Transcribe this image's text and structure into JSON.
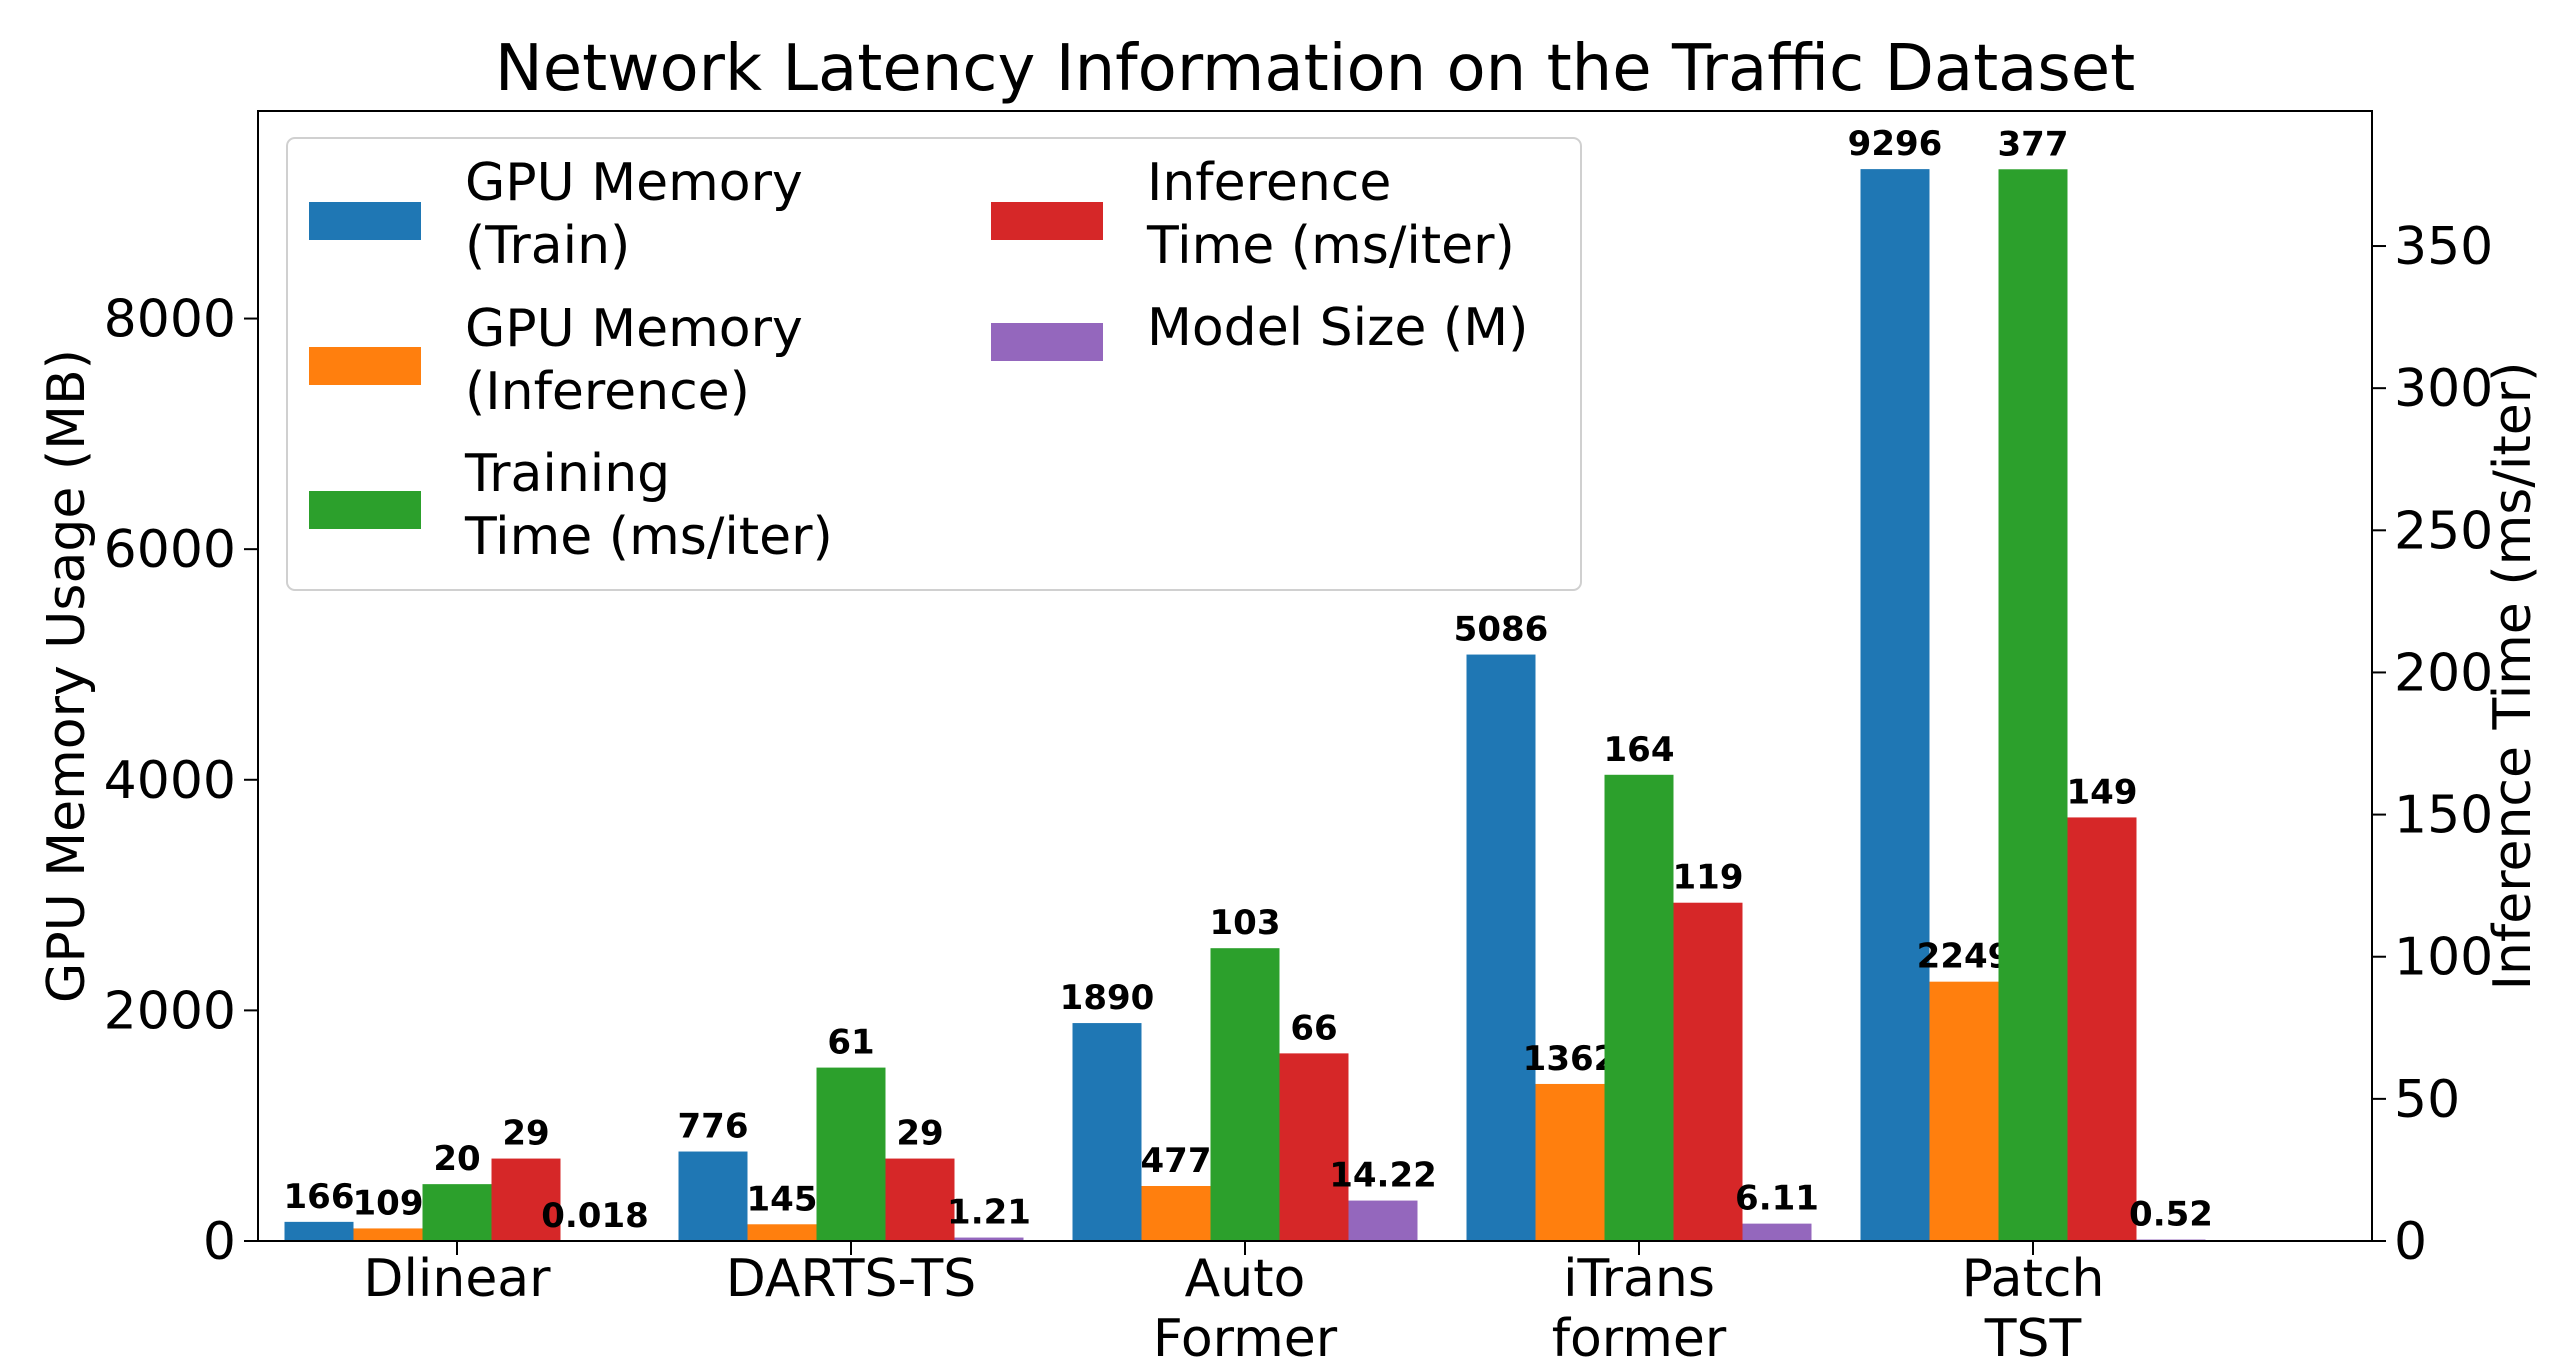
{
  "chart_data": {
    "type": "bar",
    "title": "Network Latency Information on the Traffic Dataset",
    "ylabel": "GPU Memory Usage (MB)",
    "y2label": "Inference Time (ms/iter)",
    "categories": [
      [
        "Dlinear"
      ],
      [
        "DARTS-TS"
      ],
      [
        "Auto",
        "Former"
      ],
      [
        "iTrans",
        "former"
      ],
      [
        "Patch",
        "TST"
      ]
    ],
    "ylim": [
      0,
      9800
    ],
    "y2lim": [
      0,
      397.5
    ],
    "yticks": [
      0,
      2000,
      4000,
      6000,
      8000
    ],
    "y2ticks": [
      0,
      50,
      100,
      150,
      200,
      250,
      300,
      350
    ],
    "legend_position": "upper-left",
    "legend_columns": 2,
    "series": [
      {
        "name": [
          "GPU Memory",
          " (Train)"
        ],
        "color": "#1f77b4",
        "axis": "left",
        "values": [
          166,
          776,
          1890,
          5086,
          9296
        ],
        "labels": [
          "166",
          "776",
          "1890",
          "5086",
          "9296"
        ]
      },
      {
        "name": [
          "GPU Memory",
          " (Inference)"
        ],
        "color": "#ff7f0e",
        "axis": "left",
        "values": [
          109,
          145,
          477,
          1362,
          2249
        ],
        "labels": [
          "109",
          "145",
          "477",
          "1362",
          "2249"
        ]
      },
      {
        "name": [
          "Training",
          " Time (ms/iter)"
        ],
        "color": "#2ca02c",
        "axis": "right",
        "values": [
          20,
          61,
          103,
          164,
          377
        ],
        "labels": [
          "20",
          "61",
          "103",
          "164",
          "377"
        ]
      },
      {
        "name": [
          "Inference",
          " Time (ms/iter)"
        ],
        "color": "#d62728",
        "axis": "right",
        "values": [
          29,
          29,
          66,
          119,
          149
        ],
        "labels": [
          "29",
          "29",
          "66",
          "119",
          "149"
        ]
      },
      {
        "name": [
          "Model Size (M)"
        ],
        "color": "#9467bd",
        "axis": "right",
        "values": [
          0.018,
          1.21,
          14.22,
          6.11,
          0.52
        ],
        "labels": [
          "0.018",
          "1.21",
          "14.22",
          "6.11",
          "0.52"
        ]
      }
    ]
  }
}
